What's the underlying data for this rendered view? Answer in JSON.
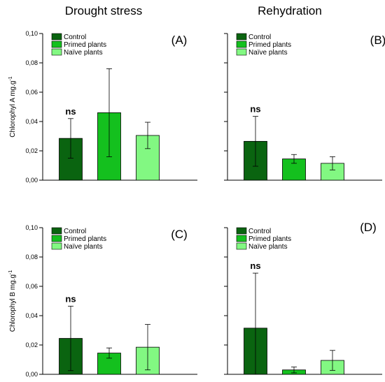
{
  "column_titles": [
    "Drought stress",
    "Rehydration"
  ],
  "y_ticks": [
    "0,00",
    "0,02",
    "0,04",
    "0,06",
    "0,08",
    "0,10"
  ],
  "ylabel_a": "Chlorophyl A mg.g",
  "ylabel_b": "Chlorophyl B mg.g",
  "ylabel_sup": "-1",
  "legend": [
    "Control",
    "Primed plants",
    "Naïve plants"
  ],
  "colors": {
    "control": "#0a6410",
    "primed": "#14c01e",
    "naive": "#82f882"
  },
  "chart_data": [
    {
      "type": "bar",
      "panel": "(A)",
      "title": "Drought stress",
      "ylabel": "Chlorophyl A mg.g-1",
      "ylim": [
        0,
        0.1
      ],
      "categories": [
        "Control",
        "Primed plants",
        "Naïve plants"
      ],
      "values": [
        0.0285,
        0.046,
        0.0305
      ],
      "errors": [
        0.0135,
        0.03,
        0.009
      ],
      "annotation": "ns"
    },
    {
      "type": "bar",
      "panel": "(B)",
      "title": "Rehydration",
      "ylabel": "",
      "ylim": [
        0,
        0.1
      ],
      "categories": [
        "Control",
        "Primed plants",
        "Naïve plants"
      ],
      "values": [
        0.0265,
        0.0145,
        0.0115
      ],
      "errors": [
        0.017,
        0.003,
        0.0045
      ],
      "annotation": "ns"
    },
    {
      "type": "bar",
      "panel": "(C)",
      "title": "",
      "ylabel": "Chlorophyl B mg.g-1",
      "ylim": [
        0,
        0.1
      ],
      "categories": [
        "Control",
        "Primed plants",
        "Naïve plants"
      ],
      "values": [
        0.0245,
        0.0145,
        0.0185
      ],
      "errors": [
        0.022,
        0.0035,
        0.0155
      ],
      "annotation": "ns"
    },
    {
      "type": "bar",
      "panel": "(D)",
      "title": "",
      "ylabel": "",
      "ylim": [
        0,
        0.1
      ],
      "categories": [
        "Control",
        "Primed plants",
        "Naïve plants"
      ],
      "values": [
        0.0315,
        0.003,
        0.0095
      ],
      "errors": [
        0.0375,
        0.002,
        0.0068
      ],
      "annotation": "ns"
    }
  ]
}
